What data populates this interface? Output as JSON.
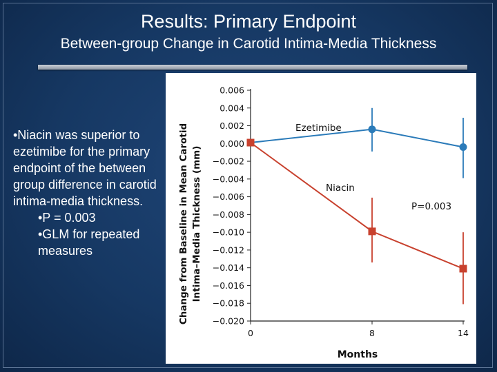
{
  "slide": {
    "title": "Results: Primary Endpoint",
    "subtitle": "Between-group Change in Carotid Intima-Media Thickness"
  },
  "bullets": {
    "main": "•Niacin was superior to ezetimibe for the primary endpoint of the between group difference in carotid intima-media thickness.",
    "sub": [
      "•P = 0.003",
      "•GLM for repeated measures"
    ]
  },
  "chart_data": {
    "type": "line",
    "xlabel": "Months",
    "ylabel_lines": [
      "Change from Baseline in Mean Carotid",
      "Intima–Media Thickness (mm)"
    ],
    "x": [
      0,
      8,
      14
    ],
    "x_ticks": [
      "0",
      "8",
      "14"
    ],
    "ylim": [
      -0.02,
      0.006
    ],
    "y_ticks": [
      "0.006",
      "0.004",
      "0.002",
      "0.000",
      "−0.002",
      "−0.004",
      "−0.006",
      "−0.008",
      "−0.010",
      "−0.012",
      "−0.014",
      "−0.016",
      "−0.018",
      "−0.020"
    ],
    "y_tick_values": [
      0.006,
      0.004,
      0.002,
      0.0,
      -0.002,
      -0.004,
      -0.006,
      -0.008,
      -0.01,
      -0.012,
      -0.014,
      -0.016,
      -0.018,
      -0.02
    ],
    "series": [
      {
        "name": "Ezetimibe",
        "color": "#2b7bb9",
        "marker": "circle",
        "values": [
          0.0001,
          0.0016,
          -0.0004
        ],
        "err_low": [
          0.0001,
          -0.0009,
          -0.0039
        ],
        "err_high": [
          0.0001,
          0.004,
          0.0029
        ]
      },
      {
        "name": "Niacin",
        "color": "#c8412e",
        "marker": "square",
        "values": [
          0.0001,
          -0.0099,
          -0.0141
        ],
        "err_low": [
          0.0001,
          -0.0134,
          -0.0181
        ],
        "err_high": [
          0.0001,
          -0.0061,
          -0.01
        ]
      }
    ],
    "annotations": [
      {
        "text": "P=0.003"
      }
    ],
    "grid": false
  }
}
